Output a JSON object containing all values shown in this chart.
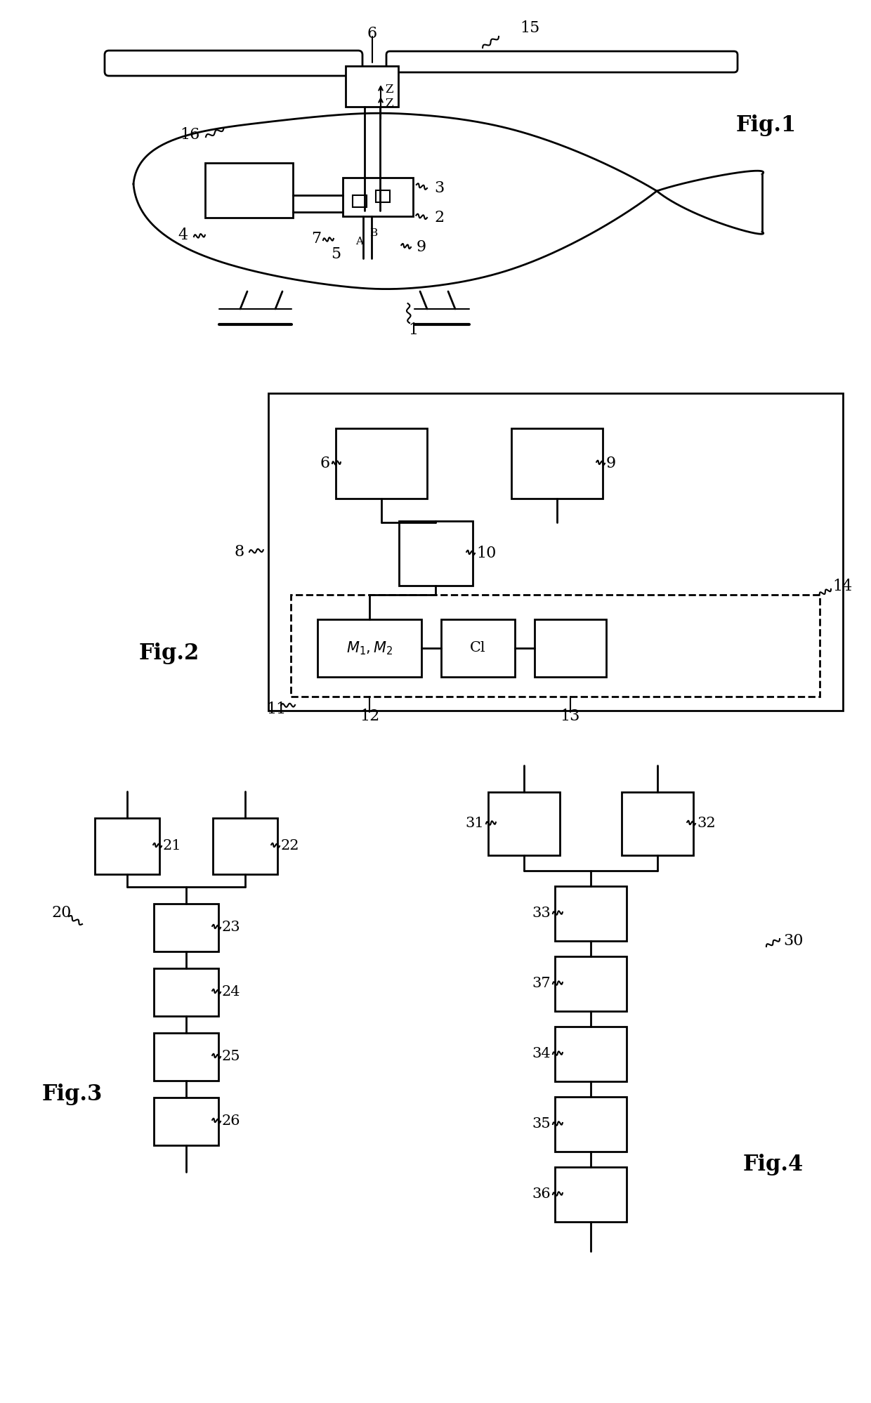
{
  "fig_width": 12.4,
  "fig_height": 19.98,
  "bg_color": "#ffffff",
  "line_color": "#000000",
  "fig1_label": "Fig.1",
  "fig2_label": "Fig.2",
  "fig3_label": "Fig.3",
  "fig4_label": "Fig.4"
}
